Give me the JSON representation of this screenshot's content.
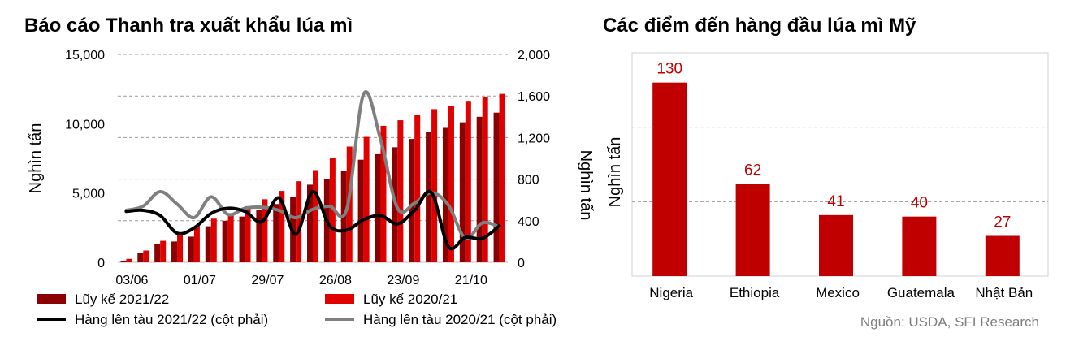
{
  "chart_data": [
    {
      "type": "bar",
      "title": "Báo cáo Thanh tra xuất khẩu lúa mì",
      "ylabel": "Nghìn tấn",
      "y2label": "Nghìn tấn",
      "ylim": [
        0,
        15000
      ],
      "y2lim": [
        0,
        2000
      ],
      "yticks": [
        "0",
        "5,000",
        "10,000",
        "15,000"
      ],
      "y2ticks": [
        "0",
        "400",
        "800",
        "1,200",
        "1,600",
        "2,000"
      ],
      "xticks": [
        "03/06",
        "01/07",
        "29/07",
        "26/08",
        "23/09",
        "21/10"
      ],
      "grid": true,
      "series": [
        {
          "name": "Lũy kế 2021/22",
          "kind": "bar",
          "color": "#8b0000",
          "values": [
            100,
            700,
            1300,
            1500,
            1850,
            2600,
            3000,
            3300,
            3800,
            4200,
            4700,
            5600,
            6000,
            6600,
            7400,
            7800,
            8300,
            8900,
            9400,
            9700,
            10100,
            10500,
            10800
          ]
        },
        {
          "name": "Lũy kế 2020/21",
          "kind": "bar",
          "color": "#e00000",
          "values": [
            250,
            850,
            1550,
            2150,
            2650,
            3150,
            3550,
            4050,
            4550,
            5150,
            5850,
            6650,
            7550,
            8350,
            9050,
            9850,
            10250,
            10650,
            11050,
            11250,
            11650,
            11950,
            12150
          ]
        },
        {
          "name": "Hàng lên tàu 2021/22 (cột phải)",
          "kind": "line",
          "color": "#000000",
          "values": [
            490,
            500,
            450,
            280,
            330,
            470,
            520,
            490,
            390,
            620,
            270,
            680,
            350,
            310,
            410,
            450,
            370,
            500,
            670,
            150,
            240,
            230,
            350
          ]
        },
        {
          "name": "Hàng lên tàu 2020/21 (cột phải)",
          "kind": "line",
          "color": "#7f7f7f",
          "values": [
            500,
            540,
            680,
            560,
            430,
            630,
            460,
            520,
            530,
            500,
            430,
            510,
            540,
            510,
            1620,
            1180,
            520,
            570,
            670,
            550,
            230,
            380,
            340
          ]
        }
      ]
    },
    {
      "type": "bar",
      "title": "Các điểm đến hàng đầu lúa mì Mỹ",
      "ylabel": "Nghìn tấn",
      "categories": [
        "Nigeria",
        "Ethiopia",
        "Mexico",
        "Guatemala",
        "Nhật Bản"
      ],
      "values": [
        130,
        62,
        41,
        40,
        27
      ],
      "labels": [
        "130",
        "62",
        "41",
        "40",
        "27"
      ],
      "ylim": [
        0,
        150
      ],
      "grid": true,
      "color": "#c00000"
    }
  ],
  "source": "Nguồn: USDA, SFI Research"
}
